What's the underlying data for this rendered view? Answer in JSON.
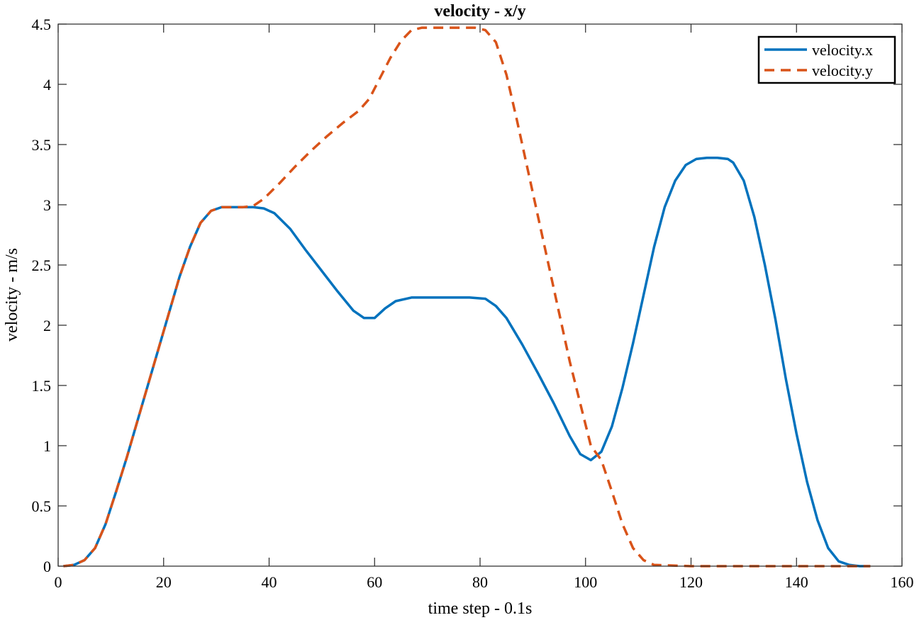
{
  "chart_data": {
    "type": "line",
    "title": "velocity - x/y",
    "xlabel": "time step - 0.1s",
    "ylabel": "velocity - m/s",
    "xlim": [
      0,
      160
    ],
    "ylim": [
      0,
      4.5
    ],
    "xticks": [
      0,
      20,
      40,
      60,
      80,
      100,
      120,
      140,
      160
    ],
    "yticks": [
      0,
      0.5,
      1,
      1.5,
      2,
      2.5,
      3,
      3.5,
      4,
      4.5
    ],
    "xtick_labels": [
      "0",
      "20",
      "40",
      "60",
      "80",
      "100",
      "120",
      "140",
      "160"
    ],
    "ytick_labels": [
      "0",
      "0.5",
      "1",
      "1.5",
      "2",
      "2.5",
      "3",
      "3.5",
      "4",
      "4.5"
    ],
    "grid": false,
    "legend_position": "top-right",
    "series": [
      {
        "name": "velocity.x",
        "color": "#0072BD",
        "style": "solid",
        "x": [
          1,
          3,
          5,
          7,
          9,
          11,
          13,
          15,
          17,
          19,
          21,
          23,
          25,
          27,
          29,
          31,
          33,
          35,
          37,
          39,
          41,
          44,
          47,
          50,
          53,
          56,
          58,
          60,
          62,
          64,
          67,
          70,
          74,
          78,
          81,
          83,
          85,
          88,
          91,
          94,
          97,
          99,
          101,
          103,
          105,
          107,
          109,
          111,
          113,
          115,
          117,
          119,
          121,
          123,
          125,
          127,
          128,
          130,
          132,
          134,
          136,
          138,
          140,
          142,
          144,
          146,
          148,
          150,
          152,
          154
        ],
        "y": [
          0,
          0.01,
          0.05,
          0.15,
          0.35,
          0.62,
          0.9,
          1.2,
          1.5,
          1.8,
          2.1,
          2.4,
          2.65,
          2.85,
          2.95,
          2.98,
          2.98,
          2.98,
          2.98,
          2.97,
          2.93,
          2.8,
          2.62,
          2.45,
          2.28,
          2.12,
          2.06,
          2.06,
          2.14,
          2.2,
          2.23,
          2.23,
          2.23,
          2.23,
          2.22,
          2.16,
          2.06,
          1.84,
          1.6,
          1.35,
          1.08,
          0.93,
          0.88,
          0.95,
          1.16,
          1.48,
          1.85,
          2.25,
          2.65,
          2.98,
          3.2,
          3.33,
          3.38,
          3.39,
          3.39,
          3.38,
          3.35,
          3.2,
          2.9,
          2.5,
          2.05,
          1.55,
          1.1,
          0.7,
          0.38,
          0.15,
          0.04,
          0.01,
          0,
          0
        ]
      },
      {
        "name": "velocity.y",
        "color": "#D95319",
        "style": "dashed",
        "x": [
          1,
          3,
          5,
          7,
          9,
          11,
          13,
          15,
          17,
          19,
          21,
          23,
          25,
          27,
          29,
          31,
          33,
          35,
          37,
          39,
          42,
          45,
          48,
          51,
          54,
          57,
          59,
          61,
          63,
          65,
          67,
          69,
          72,
          76,
          79,
          81,
          83,
          85,
          87,
          89,
          91,
          93,
          95,
          97,
          99,
          101,
          103,
          105,
          107,
          109,
          111,
          113,
          120,
          130,
          140,
          150,
          154
        ],
        "y": [
          0,
          0.01,
          0.05,
          0.15,
          0.35,
          0.62,
          0.9,
          1.2,
          1.5,
          1.8,
          2.1,
          2.4,
          2.65,
          2.85,
          2.95,
          2.98,
          2.98,
          2.98,
          2.99,
          3.05,
          3.18,
          3.32,
          3.45,
          3.57,
          3.68,
          3.78,
          3.88,
          4.05,
          4.22,
          4.36,
          4.45,
          4.47,
          4.47,
          4.47,
          4.47,
          4.45,
          4.35,
          4.08,
          3.7,
          3.3,
          2.9,
          2.5,
          2.1,
          1.7,
          1.35,
          1.0,
          0.88,
          0.62,
          0.35,
          0.15,
          0.05,
          0.01,
          0,
          0,
          0,
          0,
          0
        ]
      }
    ]
  }
}
